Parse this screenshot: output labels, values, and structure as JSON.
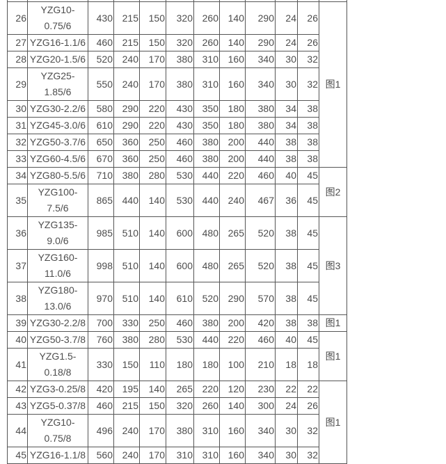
{
  "table": {
    "rows": [
      {
        "no": "26",
        "model": "YZG10-0.75/6",
        "vals": [
          "430",
          "215",
          "150",
          "320",
          "260",
          "140",
          "290",
          "24",
          "26"
        ]
      },
      {
        "no": "27",
        "model": "YZG16-1.1/6",
        "vals": [
          "460",
          "215",
          "150",
          "320",
          "260",
          "140",
          "290",
          "24",
          "26"
        ]
      },
      {
        "no": "28",
        "model": "YZG20-1.5/6",
        "vals": [
          "520",
          "240",
          "170",
          "380",
          "310",
          "160",
          "340",
          "30",
          "32"
        ]
      },
      {
        "no": "29",
        "model": "YZG25-1.85/6",
        "vals": [
          "550",
          "240",
          "170",
          "380",
          "310",
          "160",
          "340",
          "30",
          "32"
        ]
      },
      {
        "no": "30",
        "model": "YZG30-2.2/6",
        "vals": [
          "580",
          "290",
          "220",
          "430",
          "350",
          "180",
          "380",
          "34",
          "38"
        ]
      },
      {
        "no": "31",
        "model": "YZG45-3.0/6",
        "vals": [
          "610",
          "290",
          "220",
          "430",
          "350",
          "180",
          "380",
          "34",
          "38"
        ]
      },
      {
        "no": "32",
        "model": "YZG50-3.7/6",
        "vals": [
          "650",
          "360",
          "250",
          "460",
          "380",
          "200",
          "440",
          "38",
          "38"
        ]
      },
      {
        "no": "33",
        "model": "YZG60-4.5/6",
        "vals": [
          "670",
          "360",
          "250",
          "460",
          "380",
          "200",
          "440",
          "38",
          "38"
        ]
      },
      {
        "no": "34",
        "model": "YZG80-5.5/6",
        "vals": [
          "710",
          "380",
          "280",
          "530",
          "440",
          "220",
          "460",
          "40",
          "45"
        ]
      },
      {
        "no": "35",
        "model": "YZG100-7.5/6",
        "vals": [
          "865",
          "440",
          "140",
          "530",
          "440",
          "240",
          "467",
          "36",
          "45"
        ]
      },
      {
        "no": "36",
        "model": "YZG135-9.0/6",
        "vals": [
          "985",
          "510",
          "140",
          "600",
          "480",
          "265",
          "520",
          "38",
          "45"
        ]
      },
      {
        "no": "37",
        "model": "YZG160-11.0/6",
        "vals": [
          "998",
          "510",
          "140",
          "600",
          "480",
          "265",
          "520",
          "38",
          "45"
        ]
      },
      {
        "no": "38",
        "model": "YZG180-13.0/6",
        "vals": [
          "970",
          "510",
          "140",
          "610",
          "520",
          "290",
          "570",
          "38",
          "45"
        ]
      },
      {
        "no": "39",
        "model": "YZG30-2.2/8",
        "vals": [
          "700",
          "330",
          "250",
          "460",
          "380",
          "200",
          "420",
          "38",
          "38"
        ]
      },
      {
        "no": "40",
        "model": "YZG50-3.7/8",
        "vals": [
          "760",
          "380",
          "280",
          "530",
          "440",
          "220",
          "460",
          "40",
          "45"
        ]
      },
      {
        "no": "41",
        "model": "YZG1.5-0.18/8",
        "vals": [
          "330",
          "150",
          "110",
          "180",
          "180",
          "100",
          "210",
          "18",
          "18"
        ]
      },
      {
        "no": "42",
        "model": "YZG3-0.25/8",
        "vals": [
          "420",
          "195",
          "140",
          "265",
          "220",
          "120",
          "230",
          "22",
          "22"
        ]
      },
      {
        "no": "43",
        "model": "YZG5-0.37/8",
        "vals": [
          "460",
          "215",
          "150",
          "320",
          "260",
          "140",
          "300",
          "24",
          "26"
        ]
      },
      {
        "no": "44",
        "model": "YZG10-0.75/8",
        "vals": [
          "496",
          "240",
          "170",
          "380",
          "310",
          "160",
          "340",
          "30",
          "32"
        ]
      },
      {
        "no": "45",
        "model": "YZG16-1.1/8",
        "vals": [
          "560",
          "240",
          "170",
          "310",
          "310",
          "160",
          "340",
          "30",
          "32"
        ]
      }
    ],
    "figure_groups": [
      {
        "label": "图1",
        "span": 8
      },
      {
        "label": "图2",
        "span": 2
      },
      {
        "label": "图3",
        "span": 3
      },
      {
        "label": "图1",
        "span": 1
      },
      {
        "label": "图1",
        "span": 2
      },
      {
        "label": "图1",
        "span": 4
      }
    ]
  }
}
